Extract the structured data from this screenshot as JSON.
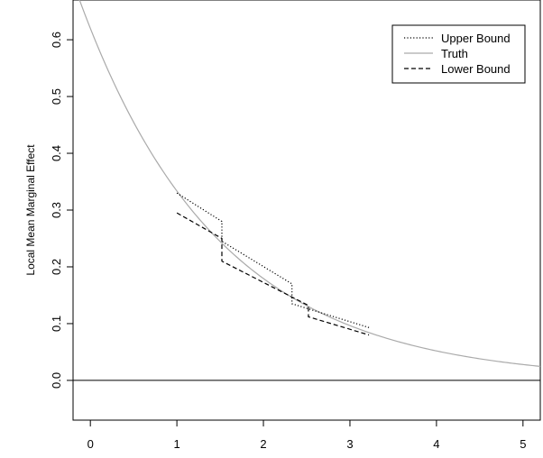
{
  "chart_data": {
    "type": "line",
    "title": "",
    "xlabel": "",
    "ylabel": "Local Mean Marginal Effect",
    "xlim": [
      -0.2,
      5.2
    ],
    "ylim": [
      -0.07,
      0.67
    ],
    "x_ticks": [
      "0",
      "1",
      "2",
      "3",
      "4",
      "5"
    ],
    "y_ticks": [
      "0.0",
      "0.1",
      "0.2",
      "0.3",
      "0.4",
      "0.5",
      "0.6"
    ],
    "reference_line": {
      "y": 0.0
    },
    "grid": false,
    "legend_position": "top-right",
    "series": [
      {
        "name": "Upper Bound",
        "style": "dotted",
        "color": "#000000",
        "x": [
          1.0,
          1.52,
          1.52,
          2.33,
          2.33,
          3.22
        ],
        "y": [
          0.33,
          0.28,
          0.245,
          0.17,
          0.135,
          0.093
        ]
      },
      {
        "name": "Truth",
        "style": "solid",
        "color": "#aaaaaa",
        "function": "0.62*exp(-0.62*x)",
        "x": [
          -0.2,
          0,
          0.5,
          1,
          1.5,
          2,
          2.5,
          3,
          3.5,
          4,
          4.5,
          5,
          5.2
        ],
        "y": [
          0.703,
          0.62,
          0.455,
          0.334,
          0.246,
          0.18,
          0.132,
          0.097,
          0.071,
          0.052,
          0.038,
          0.028,
          0.025
        ]
      },
      {
        "name": "Lower Bound",
        "style": "dashed",
        "color": "#000000",
        "x": [
          1.0,
          1.52,
          1.52,
          2.52,
          2.52,
          3.22
        ],
        "y": [
          0.295,
          0.25,
          0.21,
          0.132,
          0.112,
          0.08
        ]
      }
    ]
  }
}
